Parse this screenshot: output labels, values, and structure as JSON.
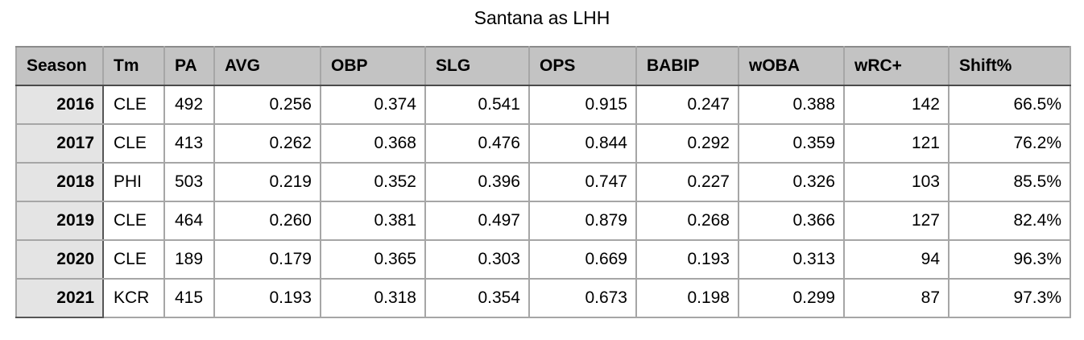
{
  "title": "Santana as LHH",
  "colors": {
    "header_bg": "#c3c3c3",
    "row_header_bg": "#e4e4e4",
    "body_bg": "#ffffff",
    "grid_border": "#a6a6a6",
    "header_dark_border": "#4a4a4a",
    "text": "#000000"
  },
  "chart_data": {
    "type": "table",
    "title": "Santana as LHH",
    "columns": [
      "Season",
      "Tm",
      "PA",
      "AVG",
      "OBP",
      "SLG",
      "OPS",
      "BABIP",
      "wOBA",
      "wRC+",
      "Shift%"
    ],
    "rows": [
      [
        "2016",
        "CLE",
        "492",
        "0.256",
        "0.374",
        "0.541",
        "0.915",
        "0.247",
        "0.388",
        "142",
        "66.5%"
      ],
      [
        "2017",
        "CLE",
        "413",
        "0.262",
        "0.368",
        "0.476",
        "0.844",
        "0.292",
        "0.359",
        "121",
        "76.2%"
      ],
      [
        "2018",
        "PHI",
        "503",
        "0.219",
        "0.352",
        "0.396",
        "0.747",
        "0.227",
        "0.326",
        "103",
        "85.5%"
      ],
      [
        "2019",
        "CLE",
        "464",
        "0.260",
        "0.381",
        "0.497",
        "0.879",
        "0.268",
        "0.366",
        "127",
        "82.4%"
      ],
      [
        "2020",
        "CLE",
        "189",
        "0.179",
        "0.365",
        "0.303",
        "0.669",
        "0.193",
        "0.313",
        "94",
        "96.3%"
      ],
      [
        "2021",
        "KCR",
        "415",
        "0.193",
        "0.318",
        "0.354",
        "0.673",
        "0.198",
        "0.299",
        "87",
        "97.3%"
      ]
    ]
  }
}
